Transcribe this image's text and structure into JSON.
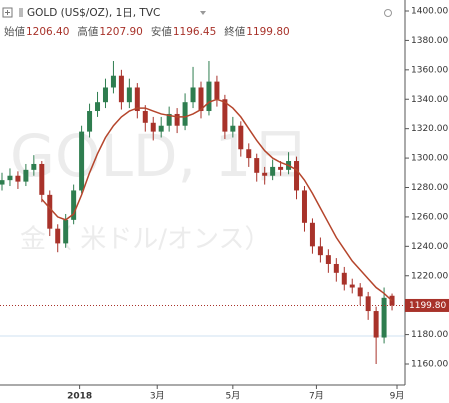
{
  "chart_data": {
    "type": "candlestick",
    "title": "GOLD (US$/OZ), 1日, TVC",
    "ohlc": {
      "labels": [
        "始値",
        "高値",
        "安値",
        "終値"
      ],
      "values": [
        1206.4,
        1207.9,
        1196.45,
        1199.8
      ],
      "value_labels": [
        "1206.40",
        "1207.90",
        "1196.45",
        "1199.80"
      ]
    },
    "watermark": {
      "title": "GOLD, 1日",
      "subtitle": "金（ 米ドル/オンス）"
    },
    "up_color": "#2e7d4f",
    "down_color": "#a8322a",
    "x": [
      0,
      4,
      8,
      12,
      16,
      20,
      24,
      28,
      32,
      36,
      40,
      44,
      48,
      52,
      56,
      60,
      64,
      68,
      72,
      76,
      80,
      84,
      88,
      92,
      96,
      100,
      104,
      108,
      112,
      116,
      120,
      124,
      128,
      132,
      136,
      140,
      144,
      148,
      152,
      156,
      160,
      164,
      168,
      172,
      176,
      180,
      184,
      188,
      192,
      196
    ],
    "open": [
      1282,
      1285,
      1288,
      1284,
      1292,
      1296,
      1275,
      1252,
      1242,
      1258,
      1278,
      1318,
      1332,
      1338,
      1348,
      1356,
      1338,
      1348,
      1332,
      1324,
      1318,
      1322,
      1330,
      1322,
      1338,
      1348,
      1332,
      1352,
      1340,
      1318,
      1322,
      1306,
      1300,
      1290,
      1288,
      1294,
      1292,
      1298,
      1278,
      1256,
      1240,
      1234,
      1228,
      1222,
      1214,
      1212,
      1206,
      1196,
      1178,
      1206.4
    ],
    "high": [
      1290,
      1293,
      1291,
      1296,
      1302,
      1298,
      1278,
      1255,
      1262,
      1282,
      1322,
      1337,
      1345,
      1354,
      1366,
      1360,
      1354,
      1351,
      1336,
      1328,
      1328,
      1335,
      1334,
      1344,
      1362,
      1352,
      1366,
      1356,
      1343,
      1328,
      1325,
      1310,
      1303,
      1294,
      1299,
      1298,
      1304,
      1301,
      1281,
      1259,
      1246,
      1238,
      1232,
      1226,
      1218,
      1215,
      1209,
      1199,
      1212,
      1207.9
    ],
    "low": [
      1278,
      1281,
      1279,
      1281,
      1288,
      1270,
      1247,
      1236,
      1239,
      1255,
      1276,
      1314,
      1328,
      1334,
      1344,
      1333,
      1334,
      1327,
      1318,
      1312,
      1314,
      1318,
      1317,
      1319,
      1334,
      1327,
      1329,
      1335,
      1313,
      1314,
      1301,
      1294,
      1284,
      1282,
      1285,
      1288,
      1289,
      1272,
      1250,
      1235,
      1229,
      1222,
      1216,
      1210,
      1208,
      1200,
      1190,
      1160,
      1174,
      1196.45
    ],
    "close": [
      1285,
      1288,
      1284,
      1292,
      1296,
      1275,
      1252,
      1242,
      1258,
      1278,
      1318,
      1332,
      1338,
      1348,
      1356,
      1338,
      1348,
      1332,
      1324,
      1318,
      1322,
      1330,
      1322,
      1338,
      1348,
      1332,
      1352,
      1340,
      1318,
      1322,
      1306,
      1300,
      1290,
      1288,
      1294,
      1292,
      1298,
      1278,
      1256,
      1240,
      1234,
      1228,
      1222,
      1214,
      1212,
      1206,
      1196,
      1178,
      1205,
      1199.8
    ],
    "ma": {
      "color": "#b5452c",
      "values": [
        null,
        null,
        null,
        null,
        null,
        1272,
        1266,
        1260,
        1258,
        1262,
        1275,
        1290,
        1303,
        1314,
        1322,
        1328,
        1332,
        1334,
        1334,
        1332,
        1330,
        1329,
        1328,
        1328,
        1330,
        1333,
        1338,
        1340,
        1338,
        1334,
        1328,
        1320,
        1312,
        1305,
        1300,
        1297,
        1295,
        1292,
        1285,
        1276,
        1266,
        1256,
        1246,
        1238,
        1230,
        1224,
        1218,
        1212,
        1208,
        1203
      ]
    },
    "xlim": [
      0,
      200
    ],
    "xticks": [
      {
        "value": 39,
        "label": "2018"
      },
      {
        "value": 78,
        "label": "3月"
      },
      {
        "value": 116,
        "label": "5月"
      },
      {
        "value": 158,
        "label": "7月"
      },
      {
        "value": 198.5,
        "label": "9月"
      }
    ],
    "ylim": [
      1150,
      1410
    ],
    "yticks": [
      {
        "value": 1160,
        "label": "1160.00"
      },
      {
        "value": 1180,
        "label": "1180.00"
      },
      {
        "value": 1200,
        "label": "1200.00"
      },
      {
        "value": 1220,
        "label": "1220.00"
      },
      {
        "value": 1240,
        "label": "1240.00"
      },
      {
        "value": 1260,
        "label": "1260.00"
      },
      {
        "value": 1280,
        "label": "1280.00"
      },
      {
        "value": 1300,
        "label": "1300.00"
      },
      {
        "value": 1320,
        "label": "1320.00"
      },
      {
        "value": 1340,
        "label": "1340.00"
      },
      {
        "value": 1360,
        "label": "1360.00"
      },
      {
        "value": 1380,
        "label": "1380.00"
      },
      {
        "value": 1400,
        "label": "1400.00"
      }
    ],
    "grid": false
  }
}
